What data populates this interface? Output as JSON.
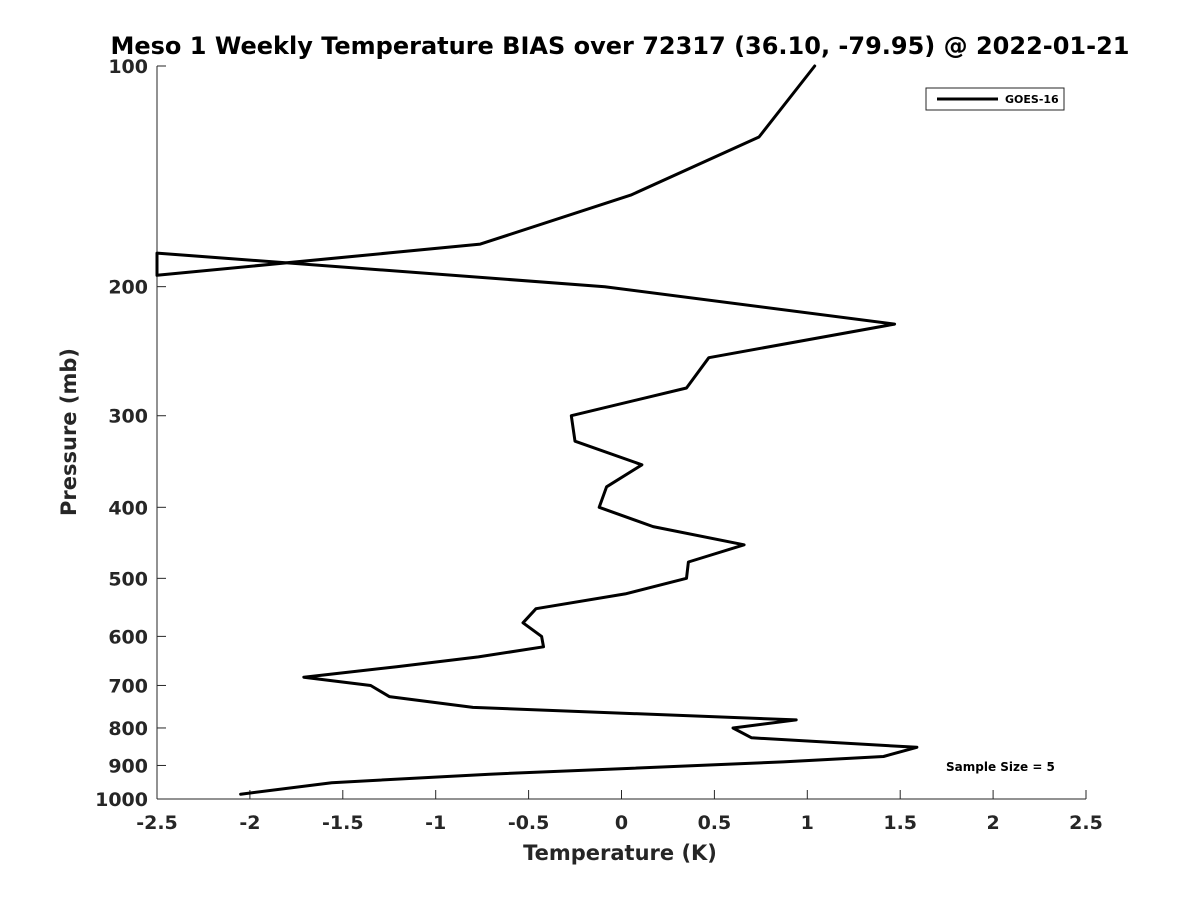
{
  "chart_data": {
    "type": "line",
    "title": "Meso 1 Weekly Temperature BIAS over 72317 (36.10, -79.95) @ 2022-01-21",
    "xlabel": "Temperature (K)",
    "ylabel": "Pressure (mb)",
    "xlim": [
      -2.5,
      2.5
    ],
    "ylim": [
      100,
      1000
    ],
    "y_scale": "log",
    "y_reversed": true,
    "x_ticks": [
      -2.5,
      -2,
      -1.5,
      -1,
      -0.5,
      0,
      0.5,
      1,
      1.5,
      2,
      2.5
    ],
    "x_tick_labels": [
      "-2.5",
      "-2",
      "-1.5",
      "-1",
      "-0.5",
      "0",
      "0.5",
      "1",
      "1.5",
      "2",
      "2.5"
    ],
    "y_ticks": [
      100,
      200,
      300,
      400,
      500,
      600,
      700,
      800,
      900,
      1000
    ],
    "y_tick_labels": [
      "100",
      "200",
      "300",
      "400",
      "500",
      "600",
      "700",
      "800",
      "900",
      "1000"
    ],
    "grid": false,
    "legend_position": "top-right",
    "series": [
      {
        "name": "GOES-16",
        "color": "#000000",
        "points": [
          [
            1.04,
            100
          ],
          [
            0.74,
            125
          ],
          [
            0.05,
            150
          ],
          [
            -0.76,
            175
          ],
          [
            -2.5,
            193
          ],
          [
            -2.5,
            180
          ],
          [
            -0.09,
            200
          ],
          [
            1.47,
            225
          ],
          [
            0.47,
            250
          ],
          [
            0.35,
            275
          ],
          [
            -0.27,
            300
          ],
          [
            -0.25,
            325
          ],
          [
            0.11,
            350
          ],
          [
            -0.08,
            375
          ],
          [
            -0.12,
            400
          ],
          [
            0.17,
            425
          ],
          [
            0.66,
            450
          ],
          [
            0.36,
            475
          ],
          [
            0.35,
            500
          ],
          [
            0.02,
            525
          ],
          [
            -0.46,
            550
          ],
          [
            -0.53,
            575
          ],
          [
            -0.43,
            600
          ],
          [
            -0.42,
            620
          ],
          [
            -0.77,
            640
          ],
          [
            -1.21,
            660
          ],
          [
            -1.71,
            682
          ],
          [
            -1.35,
            700
          ],
          [
            -1.25,
            725
          ],
          [
            -0.8,
            750
          ],
          [
            0.94,
            780
          ],
          [
            0.6,
            800
          ],
          [
            0.7,
            825
          ],
          [
            1.59,
            850
          ],
          [
            1.41,
            875
          ],
          [
            0.87,
            890
          ],
          [
            -0.71,
            925
          ],
          [
            -1.56,
            950
          ],
          [
            -2.05,
            985
          ]
        ]
      }
    ],
    "annotations": [
      "Sample Size = 5"
    ]
  }
}
